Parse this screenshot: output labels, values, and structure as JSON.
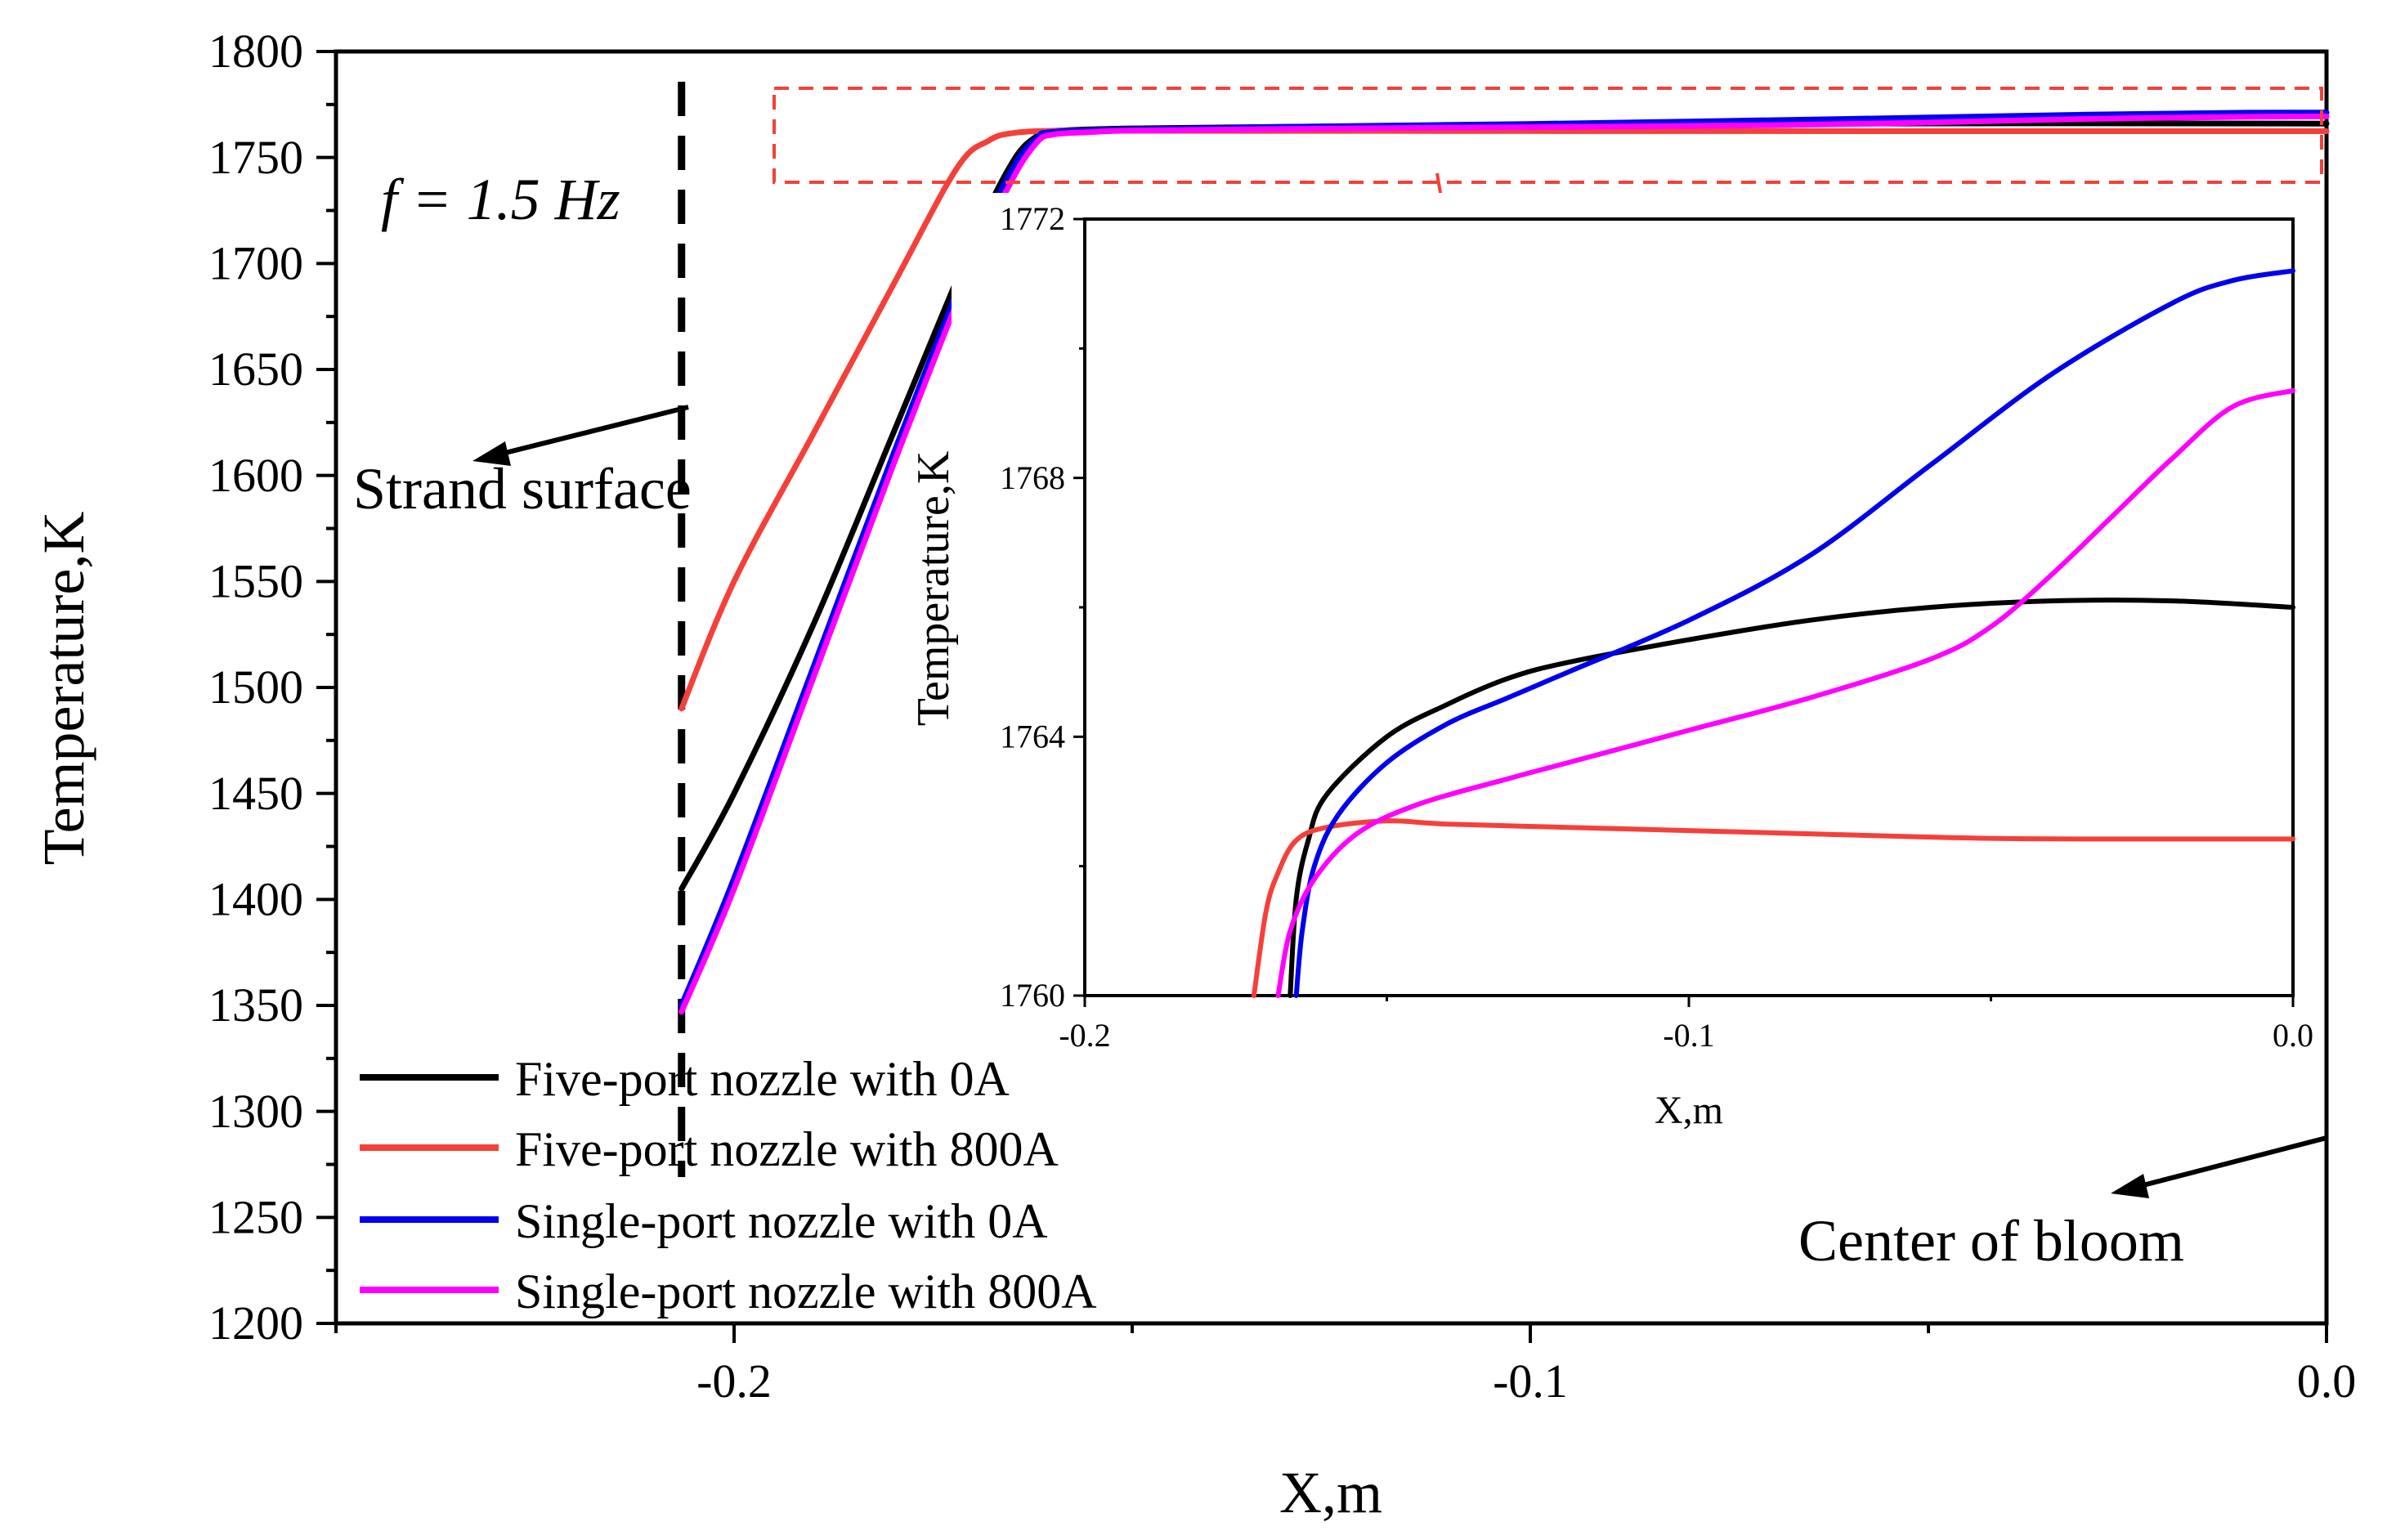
{
  "chart_data": [
    {
      "type": "line",
      "title": "",
      "annotation": "f = 1.5 Hz",
      "xlabel": "X,m",
      "ylabel": "Temperature,K",
      "xlim": [
        -0.25,
        0.0
      ],
      "ylim": [
        1200,
        1800
      ],
      "x_ticks": [
        -0.2,
        -0.1,
        0.0
      ],
      "x_tick_labels": [
        "-0.2",
        "-0.1",
        "0.0"
      ],
      "y_ticks": [
        1200,
        1250,
        1300,
        1350,
        1400,
        1450,
        1500,
        1550,
        1600,
        1650,
        1700,
        1750,
        1800
      ],
      "y_tick_labels": [
        "1200",
        "1250",
        "1300",
        "1350",
        "1400",
        "1450",
        "1500",
        "1550",
        "1600",
        "1650",
        "1700",
        "1750",
        "1800"
      ],
      "strand_surface_x": -0.2066,
      "labels": {
        "strand_surface": "Strand surface",
        "center": "Center of bloom"
      },
      "legend_position": "bottom-left",
      "series": [
        {
          "name": "Five-port nozzle with 0A",
          "color": "#000000",
          "points": [
            [
              -0.2066,
              1405
            ],
            [
              -0.2,
              1450
            ],
            [
              -0.19,
              1530
            ],
            [
              -0.18,
              1620
            ],
            [
              -0.17,
              1710
            ],
            [
              -0.165,
              1748
            ],
            [
              -0.162,
              1760
            ],
            [
              -0.16,
              1762.5
            ],
            [
              -0.15,
              1763.7
            ],
            [
              -0.13,
              1764.5
            ],
            [
              -0.1,
              1765.3
            ],
            [
              -0.06,
              1766
            ],
            [
              -0.03,
              1766.1
            ],
            [
              0.0,
              1766
            ]
          ]
        },
        {
          "name": "Five-port nozzle with 800A",
          "color": "#f5403a",
          "points": [
            [
              -0.2066,
              1490
            ],
            [
              -0.2,
              1550
            ],
            [
              -0.19,
              1620
            ],
            [
              -0.18,
              1690
            ],
            [
              -0.172,
              1745
            ],
            [
              -0.168,
              1758
            ],
            [
              -0.165,
              1761.5
            ],
            [
              -0.16,
              1762.6
            ],
            [
              -0.15,
              1762.6
            ],
            [
              -0.1,
              1762.5
            ],
            [
              -0.05,
              1762.4
            ],
            [
              0.0,
              1762.4
            ]
          ]
        },
        {
          "name": "Single-port nozzle with 0A",
          "color": "#0000ee",
          "points": [
            [
              -0.2066,
              1350
            ],
            [
              -0.2,
              1410
            ],
            [
              -0.19,
              1510
            ],
            [
              -0.18,
              1610
            ],
            [
              -0.17,
              1705
            ],
            [
              -0.165,
              1745
            ],
            [
              -0.162,
              1759
            ],
            [
              -0.16,
              1762
            ],
            [
              -0.15,
              1763.3
            ],
            [
              -0.13,
              1764.5
            ],
            [
              -0.1,
              1765.8
            ],
            [
              -0.06,
              1768.2
            ],
            [
              -0.03,
              1770.2
            ],
            [
              -0.01,
              1771.1
            ],
            [
              0.0,
              1771.2
            ]
          ]
        },
        {
          "name": "Single-port nozzle with 800A",
          "color": "#ff00ff",
          "points": [
            [
              -0.2066,
              1347
            ],
            [
              -0.2,
              1405
            ],
            [
              -0.19,
              1505
            ],
            [
              -0.18,
              1605
            ],
            [
              -0.17,
              1700
            ],
            [
              -0.165,
              1740
            ],
            [
              -0.162,
              1757
            ],
            [
              -0.16,
              1760.8
            ],
            [
              -0.155,
              1762
            ],
            [
              -0.15,
              1762.7
            ],
            [
              -0.13,
              1763.5
            ],
            [
              -0.1,
              1764.3
            ],
            [
              -0.07,
              1765.2
            ],
            [
              -0.05,
              1766.5
            ],
            [
              -0.03,
              1768.2
            ],
            [
              -0.01,
              1769.2
            ],
            [
              0.0,
              1769.4
            ]
          ]
        }
      ]
    },
    {
      "type": "line",
      "title": "",
      "xlabel": "X,m",
      "ylabel": "Temperature,K",
      "xlim": [
        -0.2,
        0.0
      ],
      "ylim": [
        1760,
        1772
      ],
      "x_ticks": [
        -0.2,
        -0.1,
        0.0
      ],
      "x_tick_labels": [
        "-0.2",
        "-0.1",
        "0.0"
      ],
      "y_ticks": [
        1760,
        1764,
        1768,
        1772
      ],
      "y_tick_labels": [
        "1760",
        "1764",
        "1768",
        "1772"
      ],
      "series": [
        {
          "name": "Five-port nozzle with 0A",
          "color": "#000000",
          "points": [
            [
              -0.166,
              1760
            ],
            [
              -0.165,
              1761.5
            ],
            [
              -0.163,
              1762.4
            ],
            [
              -0.16,
              1763.1
            ],
            [
              -0.15,
              1764
            ],
            [
              -0.14,
              1764.5
            ],
            [
              -0.13,
              1764.9
            ],
            [
              -0.12,
              1765.15
            ],
            [
              -0.1,
              1765.5
            ],
            [
              -0.08,
              1765.8
            ],
            [
              -0.06,
              1766
            ],
            [
              -0.04,
              1766.1
            ],
            [
              -0.02,
              1766.1
            ],
            [
              0.0,
              1766
            ]
          ]
        },
        {
          "name": "Five-port nozzle with 800A",
          "color": "#f5403a",
          "points": [
            [
              -0.172,
              1760
            ],
            [
              -0.17,
              1761.3
            ],
            [
              -0.168,
              1761.9
            ],
            [
              -0.165,
              1762.4
            ],
            [
              -0.16,
              1762.6
            ],
            [
              -0.15,
              1762.7
            ],
            [
              -0.14,
              1762.65
            ],
            [
              -0.12,
              1762.6
            ],
            [
              -0.1,
              1762.55
            ],
            [
              -0.08,
              1762.5
            ],
            [
              -0.05,
              1762.43
            ],
            [
              -0.02,
              1762.42
            ],
            [
              0.0,
              1762.42
            ]
          ]
        },
        {
          "name": "Single-port nozzle with 0A",
          "color": "#0000ee",
          "points": [
            [
              -0.165,
              1760
            ],
            [
              -0.164,
              1761
            ],
            [
              -0.162,
              1762
            ],
            [
              -0.158,
              1762.8
            ],
            [
              -0.15,
              1763.6
            ],
            [
              -0.14,
              1764.2
            ],
            [
              -0.13,
              1764.6
            ],
            [
              -0.12,
              1765
            ],
            [
              -0.1,
              1765.8
            ],
            [
              -0.08,
              1766.8
            ],
            [
              -0.06,
              1768.2
            ],
            [
              -0.04,
              1769.6
            ],
            [
              -0.02,
              1770.7
            ],
            [
              -0.01,
              1771.05
            ],
            [
              0.0,
              1771.2
            ]
          ]
        },
        {
          "name": "Single-port nozzle with 800A",
          "color": "#ff00ff",
          "points": [
            [
              -0.168,
              1760
            ],
            [
              -0.166,
              1761
            ],
            [
              -0.162,
              1761.8
            ],
            [
              -0.155,
              1762.5
            ],
            [
              -0.145,
              1762.95
            ],
            [
              -0.13,
              1763.35
            ],
            [
              -0.12,
              1763.6
            ],
            [
              -0.1,
              1764.1
            ],
            [
              -0.08,
              1764.6
            ],
            [
              -0.06,
              1765.2
            ],
            [
              -0.05,
              1765.7
            ],
            [
              -0.04,
              1766.5
            ],
            [
              -0.03,
              1767.4
            ],
            [
              -0.02,
              1768.3
            ],
            [
              -0.01,
              1769.1
            ],
            [
              0.0,
              1769.35
            ]
          ]
        }
      ]
    }
  ]
}
